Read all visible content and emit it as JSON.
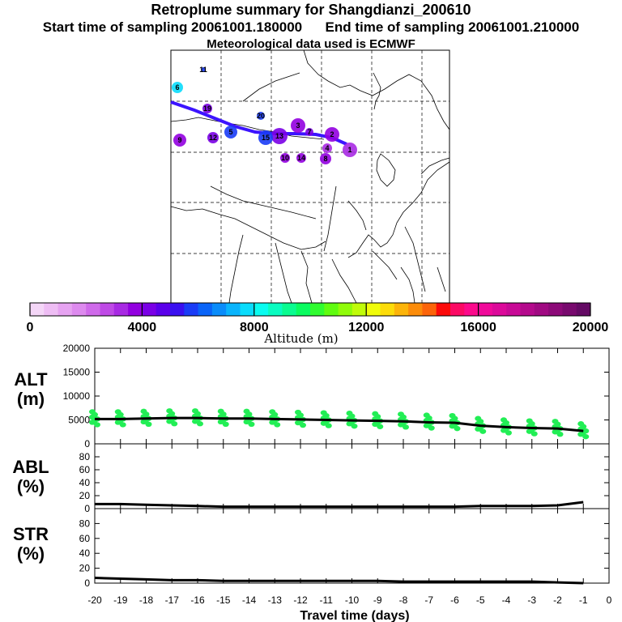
{
  "header": {
    "title": "Retroplume summary for Shangdianzi_200610",
    "start_label": "Start time of sampling 20061001.180000",
    "end_label": "End time of sampling 20061001.210000",
    "met_label": "Meteorological data used is ECMWF"
  },
  "colorbar": {
    "label": "Altitude (m)",
    "ticks": [
      "0",
      "4000",
      "8000",
      "12000",
      "16000",
      "20000"
    ],
    "range": [
      0,
      20000
    ],
    "colors": [
      "#f4d6f7",
      "#eebdf4",
      "#e6a3f1",
      "#dd8aee",
      "#cf6aea",
      "#bf4ae6",
      "#a82ae3",
      "#9200e0",
      "#7a00e6",
      "#5a00ea",
      "#3a10f0",
      "#1a3cf6",
      "#0a64f8",
      "#0a8cfa",
      "#0ab4fc",
      "#0adcfc",
      "#0afcf0",
      "#0afcc0",
      "#0afc90",
      "#0afc60",
      "#30fc30",
      "#60fc10",
      "#90fc0a",
      "#c0fc0a",
      "#f0fc0a",
      "#fcdc0a",
      "#fcb40a",
      "#fc8c0a",
      "#fc640a",
      "#fc0a0a",
      "#fc0a64",
      "#fc0a8c",
      "#f00a9a",
      "#dc0a9a",
      "#c80a96",
      "#b40a8c",
      "#a00a82",
      "#8c0a78",
      "#780a6e",
      "#640a64"
    ]
  },
  "map": {
    "plume_color": "#3c14ff",
    "markers": [
      {
        "label": "11",
        "color": "#1a3cf6"
      },
      {
        "label": "6",
        "color": "#0adcfc"
      },
      {
        "label": "19",
        "color": "#7a00e6"
      },
      {
        "label": "20",
        "color": "#1a3cf6"
      },
      {
        "label": "5",
        "color": "#1a3cf6"
      },
      {
        "label": "3",
        "color": "#9200e0"
      },
      {
        "label": "2",
        "color": "#9200e0"
      },
      {
        "label": "1",
        "color": "#a82ae3"
      },
      {
        "label": "10",
        "color": "#9200e0"
      },
      {
        "label": "4",
        "color": "#a82ae3"
      },
      {
        "label": "9",
        "color": "#9200e0"
      },
      {
        "label": "7",
        "color": "#7a00e6"
      },
      {
        "label": "8",
        "color": "#9200e0"
      },
      {
        "label": "12",
        "color": "#7a00e6"
      },
      {
        "label": "13",
        "color": "#7a00e6"
      },
      {
        "label": "14",
        "color": "#9200e0"
      },
      {
        "label": "15",
        "color": "#1a3cf6"
      }
    ]
  },
  "chart_data": [
    {
      "type": "line",
      "name": "ALT",
      "ylabel": "ALT (m)",
      "ylabel_lines": [
        "ALT",
        "(m)"
      ],
      "ylim": [
        0,
        20000
      ],
      "yticks": [
        "0",
        "5000",
        "10000",
        "15000",
        "20000"
      ],
      "xlim": [
        -20,
        0
      ],
      "x": [
        -20,
        -19,
        -18,
        -17,
        -16,
        -15,
        -14,
        -13,
        -12,
        -11,
        -10,
        -9,
        -8,
        -7,
        -6,
        -5,
        -4,
        -3,
        -2,
        -1
      ],
      "values": [
        5200,
        5200,
        5300,
        5400,
        5400,
        5300,
        5300,
        5200,
        5100,
        5000,
        4900,
        4800,
        4700,
        4500,
        4400,
        3800,
        3500,
        3300,
        3200,
        2700
      ],
      "scatter_color": "#22ee55",
      "line_color": "#000000"
    },
    {
      "type": "line",
      "name": "ABL",
      "ylabel": "ABL (%)",
      "ylabel_lines": [
        "ABL",
        "(%)"
      ],
      "ylim": [
        0,
        100
      ],
      "yticks": [
        "0",
        "20",
        "40",
        "60",
        "80"
      ],
      "xlim": [
        -20,
        0
      ],
      "x": [
        -20,
        -19,
        -18,
        -17,
        -16,
        -15,
        -14,
        -13,
        -12,
        -11,
        -10,
        -9,
        -8,
        -7,
        -6,
        -5,
        -4,
        -3,
        -2,
        -1
      ],
      "values": [
        7,
        7,
        6,
        5,
        4,
        3,
        3,
        3,
        3,
        3,
        3,
        3,
        3,
        3,
        3,
        4,
        4,
        4,
        5,
        10
      ]
    },
    {
      "type": "line",
      "name": "STR",
      "ylabel": "STR (%)",
      "ylabel_lines": [
        "STR",
        "(%)"
      ],
      "ylim": [
        0,
        100
      ],
      "yticks": [
        "0",
        "20",
        "40",
        "60",
        "80"
      ],
      "xlim": [
        -20,
        0
      ],
      "x": [
        -20,
        -19,
        -18,
        -17,
        -16,
        -15,
        -14,
        -13,
        -12,
        -11,
        -10,
        -9,
        -8,
        -7,
        -6,
        -5,
        -4,
        -3,
        -2,
        -1
      ],
      "values": [
        7,
        6,
        5,
        4,
        4,
        3,
        3,
        3,
        3,
        3,
        3,
        3,
        2,
        2,
        2,
        2,
        2,
        2,
        1,
        0
      ]
    }
  ],
  "xaxis": {
    "label": "Travel time (days)",
    "ticks": [
      "-20",
      "-19",
      "-18",
      "-17",
      "-16",
      "-15",
      "-14",
      "-13",
      "-12",
      "-11",
      "-10",
      "-9",
      "-8",
      "-7",
      "-6",
      "-5",
      "-4",
      "-3",
      "-2",
      "-1",
      "0"
    ]
  }
}
